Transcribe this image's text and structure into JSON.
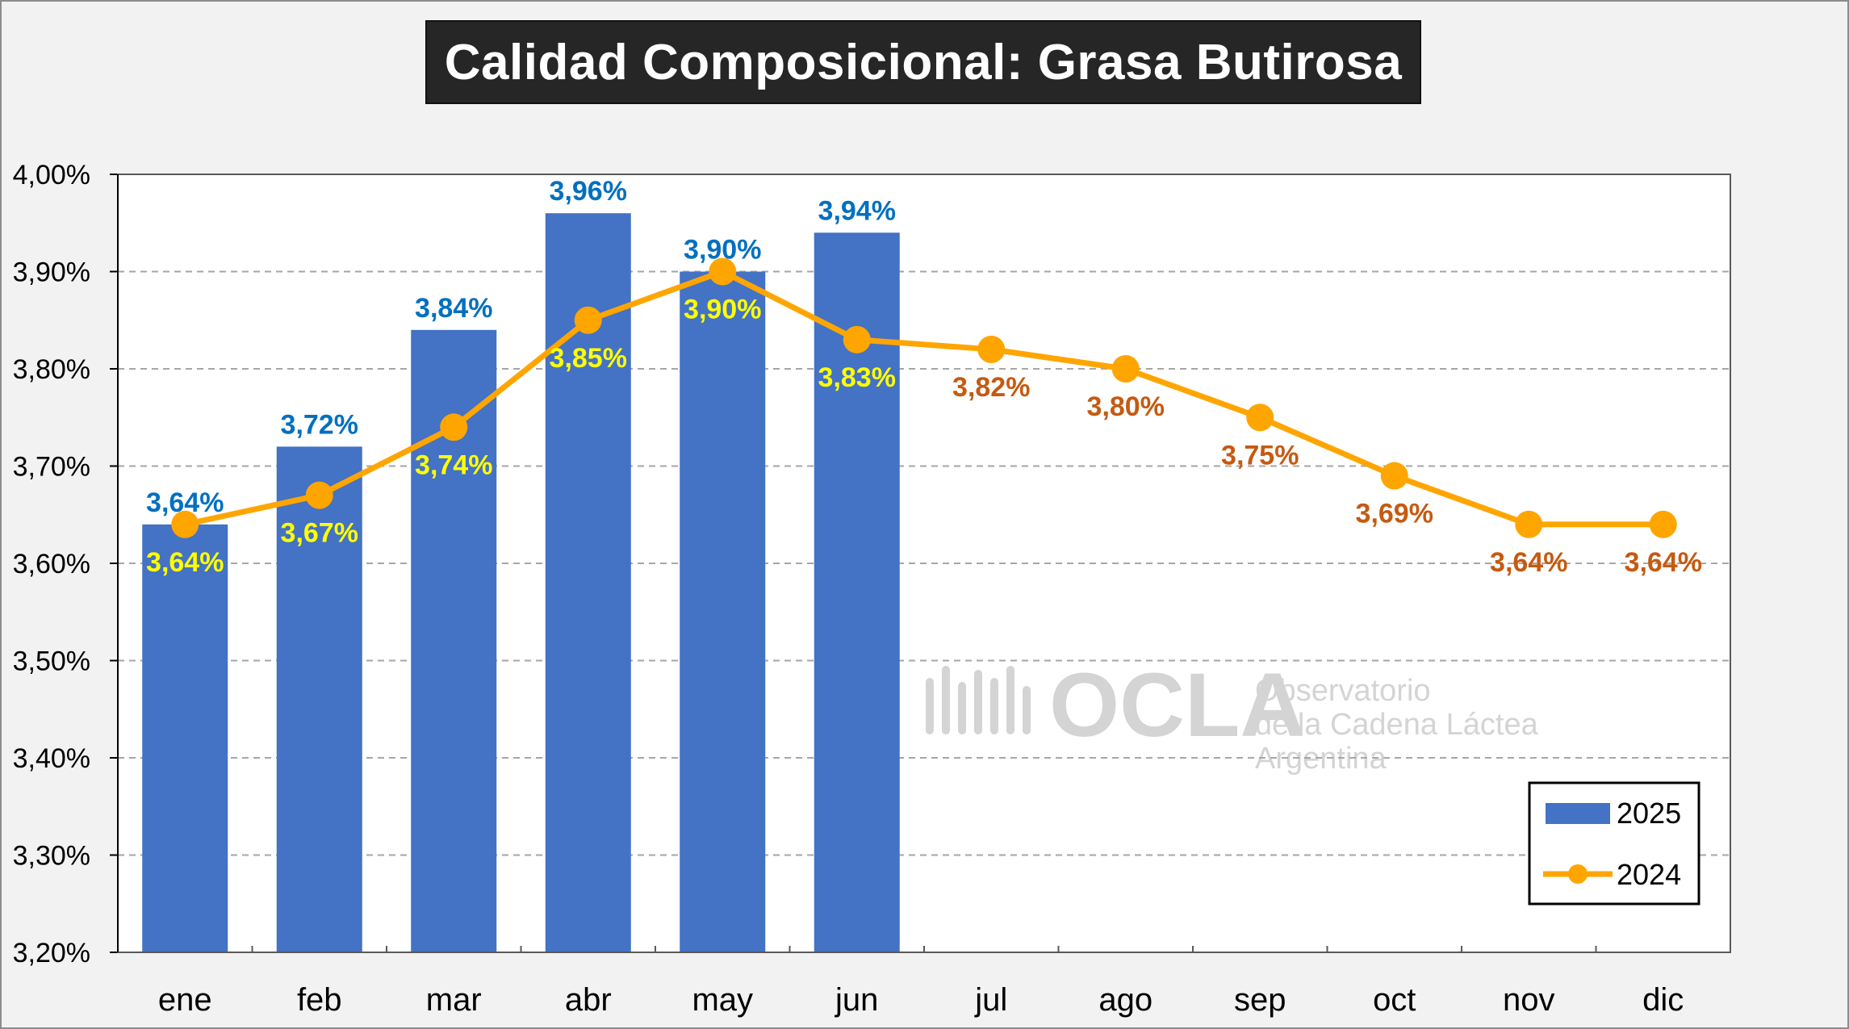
{
  "chart_data": {
    "type": "bar",
    "title": "Calidad Composicional: Grasa Butirosa",
    "categories": [
      "ene",
      "feb",
      "mar",
      "abr",
      "may",
      "jun",
      "jul",
      "ago",
      "sep",
      "oct",
      "nov",
      "dic"
    ],
    "series": [
      {
        "name": "2025",
        "type": "bar",
        "color": "#4472c4",
        "label_color": "#0070c0",
        "values": [
          3.64,
          3.72,
          3.84,
          3.96,
          3.9,
          3.94,
          null,
          null,
          null,
          null,
          null,
          null
        ],
        "labels": [
          "3,64%",
          "3,72%",
          "3,84%",
          "3,96%",
          "3,90%",
          "3,94%"
        ]
      },
      {
        "name": "2024",
        "type": "line",
        "color": "#ffa500",
        "label_color_over_bar": "#ffff00",
        "label_color": "#c55a11",
        "values": [
          3.64,
          3.67,
          3.74,
          3.85,
          3.9,
          3.83,
          3.82,
          3.8,
          3.75,
          3.69,
          3.64,
          3.64
        ],
        "labels": [
          "3,64%",
          "3,67%",
          "3,74%",
          "3,85%",
          "3,90%",
          "3,83%",
          "3,82%",
          "3,80%",
          "3,75%",
          "3,69%",
          "3,64%",
          "3,64%"
        ]
      }
    ],
    "ylim": [
      3.2,
      4.0
    ],
    "yticks": [
      "3,20%",
      "3,30%",
      "3,40%",
      "3,50%",
      "3,60%",
      "3,70%",
      "3,80%",
      "3,90%",
      "4,00%"
    ],
    "grid": "horizontal-dashed",
    "legend": "bottom-right"
  },
  "watermark": {
    "brand": "OCLA",
    "line1": "Observatorio",
    "line2": "de la Cadena Láctea",
    "line3": "Argentina"
  }
}
